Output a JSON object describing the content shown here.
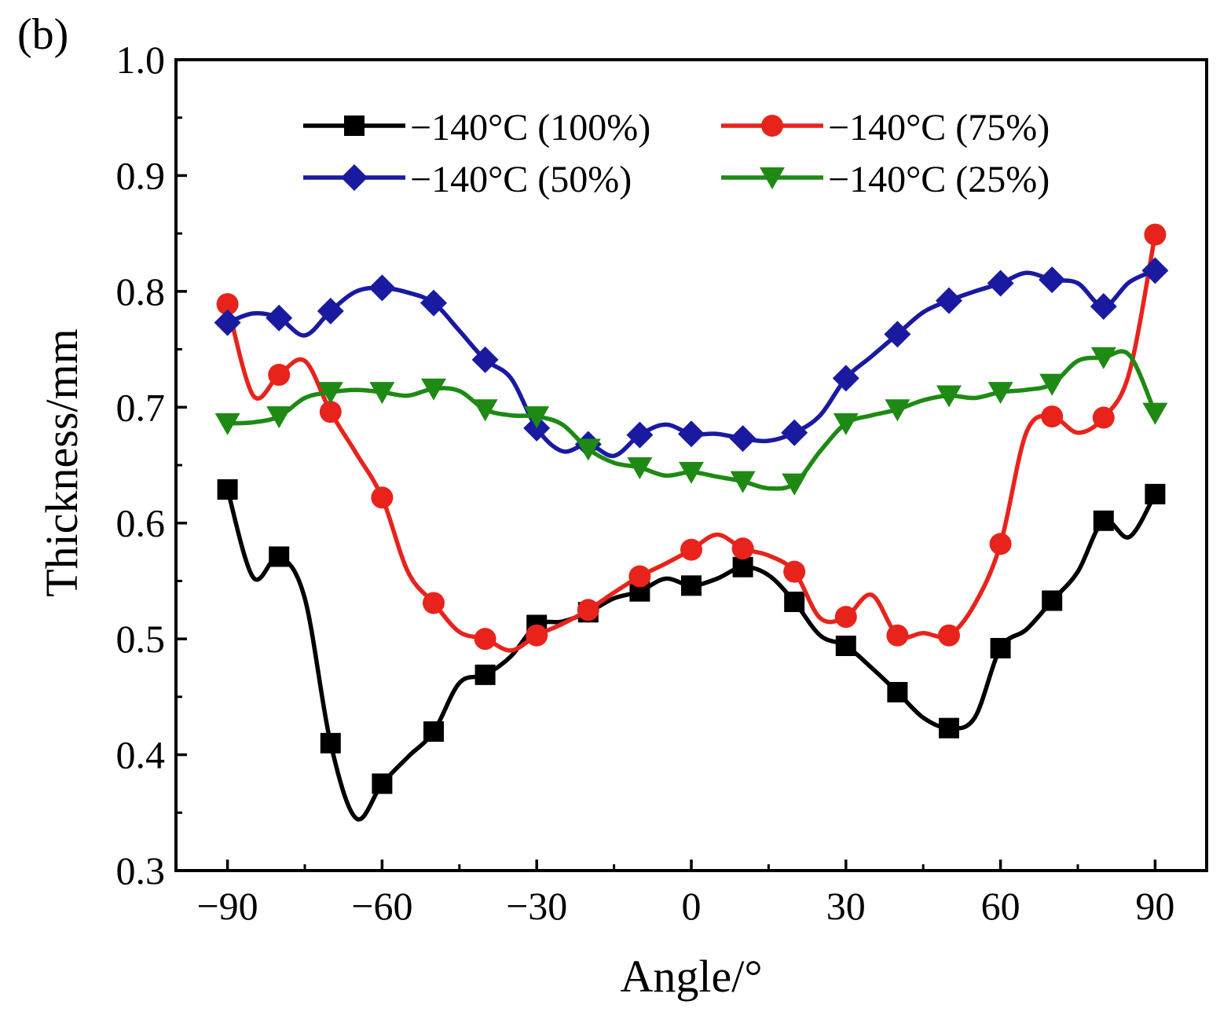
{
  "chart_data": {
    "type": "line",
    "panel_label": "(b)",
    "title": "",
    "xlabel": "Angle/°",
    "ylabel": "Thickness/mm",
    "xlim": [
      -100,
      100
    ],
    "ylim": [
      0.3,
      1.0
    ],
    "xticks": [
      -90,
      -60,
      -30,
      0,
      30,
      60,
      90
    ],
    "xtick_labels": [
      "−90",
      "−60",
      "−30",
      "0",
      "30",
      "60",
      "90"
    ],
    "yticks": [
      0.3,
      0.4,
      0.5,
      0.6,
      0.7,
      0.8,
      0.9,
      1.0
    ],
    "ytick_labels": [
      "0.3",
      "0.4",
      "0.5",
      "0.6",
      "0.7",
      "0.8",
      "0.9",
      "1.0"
    ],
    "grid": false,
    "legend_position": "top",
    "x": [
      -90,
      -85,
      -80,
      -75,
      -70,
      -65,
      -60,
      -55,
      -50,
      -45,
      -40,
      -35,
      -30,
      -25,
      -20,
      -15,
      -10,
      -5,
      0,
      5,
      10,
      15,
      20,
      25,
      30,
      35,
      40,
      45,
      50,
      55,
      60,
      65,
      70,
      75,
      80,
      85,
      90
    ],
    "marker_x": [
      -90,
      -80,
      -70,
      -60,
      -50,
      -40,
      -30,
      -20,
      -10,
      0,
      10,
      20,
      30,
      40,
      50,
      60,
      70,
      80,
      90
    ],
    "series": [
      {
        "name": "−140°C (100%)",
        "color": "#000000",
        "marker": "square",
        "values": [
          0.629,
          0.553,
          0.571,
          0.535,
          0.41,
          0.345,
          0.375,
          0.398,
          0.42,
          0.462,
          0.469,
          0.485,
          0.512,
          0.515,
          0.523,
          0.535,
          0.541,
          0.552,
          0.546,
          0.552,
          0.562,
          0.555,
          0.532,
          0.503,
          0.494,
          0.475,
          0.454,
          0.432,
          0.423,
          0.432,
          0.492,
          0.508,
          0.533,
          0.558,
          0.602,
          0.588,
          0.625
        ]
      },
      {
        "name": "−140°C (75%)",
        "color": "#e8231c",
        "marker": "circle",
        "values": [
          0.789,
          0.71,
          0.728,
          0.74,
          0.696,
          0.66,
          0.622,
          0.558,
          0.531,
          0.506,
          0.5,
          0.49,
          0.503,
          0.513,
          0.525,
          0.54,
          0.554,
          0.565,
          0.577,
          0.59,
          0.578,
          0.572,
          0.558,
          0.518,
          0.519,
          0.538,
          0.503,
          0.505,
          0.503,
          0.53,
          0.582,
          0.678,
          0.692,
          0.678,
          0.691,
          0.73,
          0.849
        ]
      },
      {
        "name": "−140°C (50%)",
        "color": "#1a1aa0",
        "marker": "diamond",
        "values": [
          0.773,
          0.781,
          0.777,
          0.762,
          0.783,
          0.8,
          0.803,
          0.799,
          0.79,
          0.766,
          0.741,
          0.725,
          0.682,
          0.662,
          0.668,
          0.658,
          0.676,
          0.685,
          0.677,
          0.677,
          0.673,
          0.671,
          0.678,
          0.693,
          0.725,
          0.744,
          0.763,
          0.782,
          0.792,
          0.8,
          0.807,
          0.816,
          0.81,
          0.807,
          0.787,
          0.808,
          0.818
        ]
      },
      {
        "name": "−140°C (25%)",
        "color": "#1e8a14",
        "marker": "triangle-down",
        "values": [
          0.686,
          0.687,
          0.692,
          0.708,
          0.713,
          0.715,
          0.713,
          0.71,
          0.716,
          0.714,
          0.698,
          0.693,
          0.692,
          0.685,
          0.664,
          0.652,
          0.648,
          0.641,
          0.644,
          0.64,
          0.636,
          0.63,
          0.634,
          0.662,
          0.686,
          0.693,
          0.698,
          0.706,
          0.71,
          0.708,
          0.713,
          0.715,
          0.72,
          0.74,
          0.743,
          0.745,
          0.695
        ]
      }
    ]
  }
}
